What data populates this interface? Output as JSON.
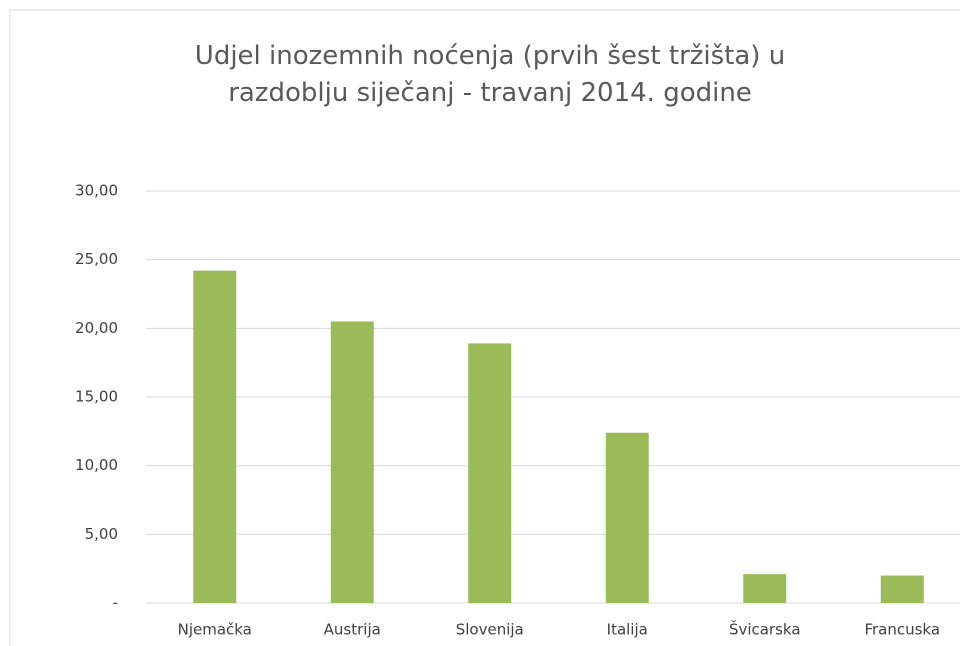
{
  "chart_data": {
    "type": "bar",
    "title": "Udjel inozemnih noćenja (prvih šest tržišta) u razdoblju siječanj - travanj 2014. godine",
    "categories": [
      "Njemačka",
      "Austrija",
      "Slovenija",
      "Italija",
      "Švicarska",
      "Francuska"
    ],
    "values": [
      24.2,
      20.5,
      18.9,
      12.4,
      2.1,
      2.0
    ],
    "color": "#9bbb59",
    "ylim": [
      0,
      30
    ],
    "yticks": [
      {
        "value": 0,
        "label": "-"
      },
      {
        "value": 5,
        "label": "5,00"
      },
      {
        "value": 10,
        "label": "10,00"
      },
      {
        "value": 15,
        "label": "15,00"
      },
      {
        "value": 20,
        "label": "20,00"
      },
      {
        "value": 25,
        "label": "25,00"
      },
      {
        "value": 30,
        "label": "30,00"
      }
    ],
    "grid": true
  }
}
